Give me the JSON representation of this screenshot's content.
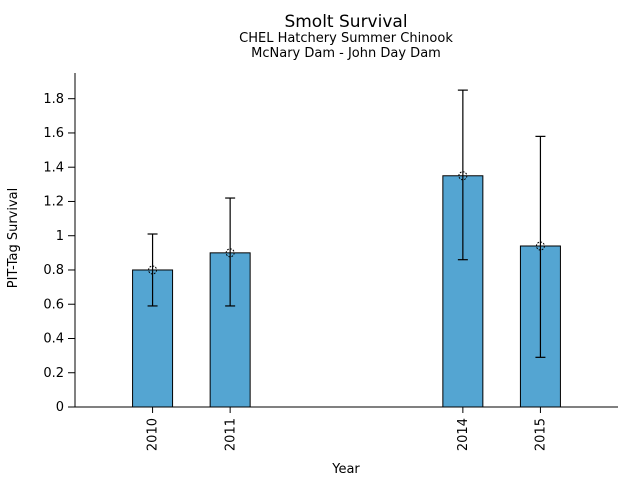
{
  "header": {
    "title": "Smolt Survival",
    "subtitle1": "CHEL Hatchery Summer Chinook",
    "subtitle2": "McNary Dam - John Day Dam"
  },
  "chart_data": {
    "type": "bar",
    "title": "Smolt Survival",
    "subtitle": [
      "CHEL Hatchery Summer Chinook",
      "McNary Dam - John Day Dam"
    ],
    "xlabel": "Year",
    "ylabel": "PIT-Tag Survival",
    "categories": [
      2010,
      2011,
      2014,
      2015
    ],
    "values": [
      0.8,
      0.9,
      1.35,
      0.94
    ],
    "error_bars": {
      "low": [
        0.59,
        0.59,
        0.86,
        0.29
      ],
      "high": [
        1.01,
        1.22,
        1.85,
        1.58
      ]
    },
    "xlim": [
      2009,
      2016
    ],
    "ylim": [
      0,
      1.95
    ],
    "yticks": [
      0,
      0.2,
      0.4,
      0.6,
      0.8,
      1,
      1.2,
      1.4,
      1.6,
      1.8
    ],
    "grid": false,
    "legend": null,
    "bar_color": "#54A5D2",
    "bar_edge_color": "#000000",
    "error_color": "#000000",
    "marker": "open-circle",
    "x_tick_rotation": 90
  }
}
